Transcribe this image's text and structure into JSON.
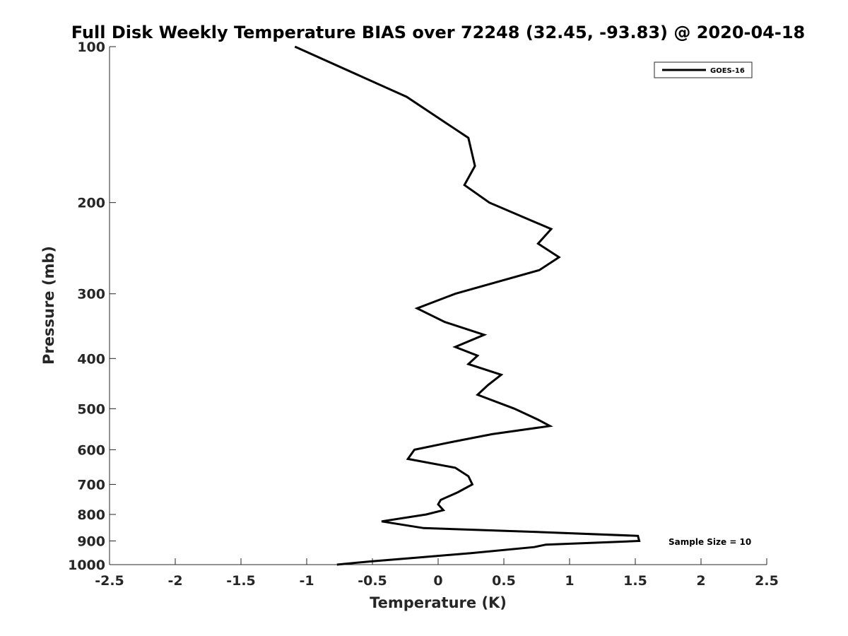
{
  "chart_data": {
    "type": "line",
    "title": "Full Disk Weekly Temperature BIAS over 72248 (32.45, -93.83) @ 2020-04-18",
    "xlabel": "Temperature (K)",
    "ylabel": "Pressure (mb)",
    "xlim": [
      -2.5,
      2.5
    ],
    "ylim": [
      1000,
      100
    ],
    "y_scale": "log",
    "y_reversed": true,
    "grid": false,
    "legend_position": "top-right",
    "x_ticks": [
      "-2.5",
      "-2",
      "-1.5",
      "-1",
      "-0.5",
      "0",
      "0.5",
      "1",
      "1.5",
      "2",
      "2.5"
    ],
    "x_tick_values": [
      -2.5,
      -2,
      -1.5,
      -1,
      -0.5,
      0,
      0.5,
      1,
      1.5,
      2,
      2.5
    ],
    "y_ticks": [
      "100",
      "200",
      "300",
      "400",
      "500",
      "600",
      "700",
      "800",
      "900",
      "1000"
    ],
    "y_tick_values": [
      100,
      200,
      300,
      400,
      500,
      600,
      700,
      800,
      900,
      1000
    ],
    "series": [
      {
        "name": "GOES-16",
        "color": "#000000",
        "points": [
          {
            "x": -1.09,
            "y": 100
          },
          {
            "x": -0.24,
            "y": 125
          },
          {
            "x": 0.23,
            "y": 150
          },
          {
            "x": 0.28,
            "y": 170
          },
          {
            "x": 0.2,
            "y": 185
          },
          {
            "x": 0.39,
            "y": 200
          },
          {
            "x": 0.86,
            "y": 225
          },
          {
            "x": 0.76,
            "y": 240
          },
          {
            "x": 0.92,
            "y": 255
          },
          {
            "x": 0.77,
            "y": 270
          },
          {
            "x": 0.13,
            "y": 300
          },
          {
            "x": -0.16,
            "y": 320
          },
          {
            "x": 0.05,
            "y": 340
          },
          {
            "x": 0.35,
            "y": 360
          },
          {
            "x": 0.13,
            "y": 380
          },
          {
            "x": 0.3,
            "y": 395
          },
          {
            "x": 0.23,
            "y": 410
          },
          {
            "x": 0.48,
            "y": 430
          },
          {
            "x": 0.38,
            "y": 450
          },
          {
            "x": 0.3,
            "y": 470
          },
          {
            "x": 0.58,
            "y": 500
          },
          {
            "x": 0.76,
            "y": 525
          },
          {
            "x": 0.85,
            "y": 540
          },
          {
            "x": 0.41,
            "y": 560
          },
          {
            "x": 0.1,
            "y": 580
          },
          {
            "x": -0.18,
            "y": 600
          },
          {
            "x": -0.23,
            "y": 625
          },
          {
            "x": 0.13,
            "y": 650
          },
          {
            "x": 0.23,
            "y": 675
          },
          {
            "x": 0.26,
            "y": 700
          },
          {
            "x": 0.15,
            "y": 725
          },
          {
            "x": 0.02,
            "y": 750
          },
          {
            "x": 0.0,
            "y": 765
          },
          {
            "x": 0.04,
            "y": 785
          },
          {
            "x": -0.09,
            "y": 800
          },
          {
            "x": -0.43,
            "y": 825
          },
          {
            "x": -0.11,
            "y": 850
          },
          {
            "x": 0.75,
            "y": 865
          },
          {
            "x": 1.52,
            "y": 880
          },
          {
            "x": 1.53,
            "y": 900
          },
          {
            "x": 0.82,
            "y": 915
          },
          {
            "x": 0.73,
            "y": 925
          },
          {
            "x": 0.25,
            "y": 950
          },
          {
            "x": -0.17,
            "y": 970
          },
          {
            "x": -0.5,
            "y": 985
          },
          {
            "x": -0.77,
            "y": 1000
          }
        ]
      }
    ],
    "annotations": [
      {
        "text": "Sample Size = 10"
      }
    ]
  }
}
